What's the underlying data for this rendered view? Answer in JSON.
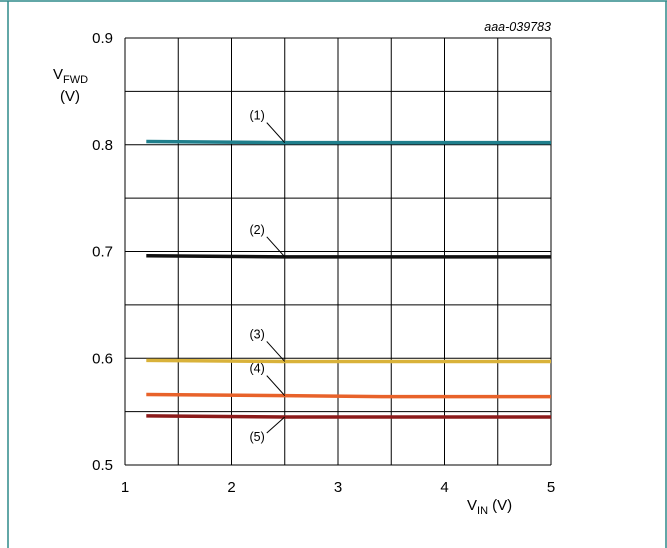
{
  "figure": {
    "identifier": "aaa-039783",
    "frame_color": "#2f8a8a"
  },
  "chart_data": {
    "type": "line",
    "xlabel": {
      "main": "V",
      "sub": "IN",
      "unit": " (V)"
    },
    "ylabel": {
      "main": "V",
      "sub": "FWD",
      "unit": "(V)"
    },
    "xlim": [
      1,
      5
    ],
    "ylim": [
      0.5,
      0.9
    ],
    "x_ticks": [
      1,
      2,
      3,
      4,
      5
    ],
    "x_tick_labels": [
      "1",
      "2",
      "3",
      "4",
      "5"
    ],
    "y_ticks": [
      0.5,
      0.6,
      0.7,
      0.8,
      0.9
    ],
    "y_tick_labels": [
      "0.5",
      "0.6",
      "0.7",
      "0.8",
      "0.9"
    ],
    "grid": true,
    "series": [
      {
        "label": "(1)",
        "color": "#1f7f8c",
        "x": [
          1.2,
          2.5,
          5.0
        ],
        "y": [
          0.803,
          0.802,
          0.802
        ]
      },
      {
        "label": "(2)",
        "color": "#111111",
        "x": [
          1.2,
          2.5,
          5.0
        ],
        "y": [
          0.696,
          0.695,
          0.695
        ]
      },
      {
        "label": "(3)",
        "color": "#d9b23a",
        "x": [
          1.2,
          2.5,
          5.0
        ],
        "y": [
          0.598,
          0.597,
          0.597
        ]
      },
      {
        "label": "(4)",
        "color": "#e8622a",
        "x": [
          1.2,
          2.5,
          3.5,
          5.0
        ],
        "y": [
          0.566,
          0.565,
          0.564,
          0.564
        ]
      },
      {
        "label": "(5)",
        "color": "#8b1a1a",
        "x": [
          1.2,
          2.5,
          5.0
        ],
        "y": [
          0.546,
          0.545,
          0.545
        ]
      }
    ]
  }
}
